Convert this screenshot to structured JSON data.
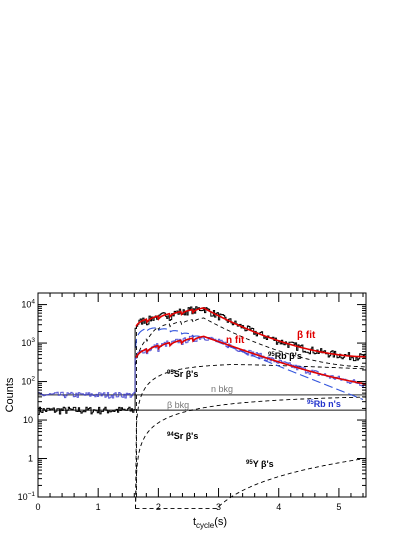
{
  "chart_data": {
    "type": "line",
    "xlabel": "t",
    "xlabel_sub": "cycle",
    "xlabel_unit": "(s)",
    "ylabel": "Counts",
    "xlim": [
      0,
      5.45
    ],
    "ylim": [
      0.1,
      20000
    ],
    "y_scale": "log",
    "x_ticks": [
      0,
      1,
      2,
      3,
      4,
      5
    ],
    "x_tick_labels": [
      "0",
      "1",
      "2",
      "3",
      "4",
      "5"
    ],
    "y_ticks": [
      0.1,
      1,
      10,
      100,
      1000,
      10000
    ],
    "y_tick_labels": [
      {
        "base": "10",
        "exp": "−1"
      },
      {
        "base": "1",
        "exp": ""
      },
      {
        "base": "10",
        "exp": ""
      },
      {
        "base": "10",
        "exp": "2"
      },
      {
        "base": "10",
        "exp": "3"
      },
      {
        "base": "10",
        "exp": "4"
      }
    ],
    "grid": false,
    "annotations": {
      "beta_fit": "β fit",
      "n_fit": "n fit",
      "rb95_beta": {
        "pre": "95",
        "main": "Rb β's"
      },
      "sr95_beta": {
        "pre": "95",
        "main": "Sr β's"
      },
      "n_bkg": "n bkg",
      "beta_bkg": "β bkg",
      "rb95_n": {
        "pre": "95",
        "main": "Rb n's"
      },
      "sr94_beta": {
        "pre": "94",
        "main": "Sr β's"
      },
      "y95_beta": {
        "pre": "95",
        "main": "Y  β's"
      }
    },
    "params": {
      "t_on": 1.62,
      "t_saw_end": 2.75,
      "saw_period": 0.19,
      "bkg_n": 45,
      "bkg_beta": 18,
      "beta_peak": 8200,
      "beta_end": 440,
      "n_peak": 1500,
      "n_end": 60,
      "n_half_life_s": 0.375
    },
    "series": [
      {
        "key": "beta_data",
        "color": "#000000"
      },
      {
        "key": "beta_fit",
        "color": "#e00000"
      },
      {
        "key": "n_data",
        "color": "#3333cc"
      },
      {
        "key": "n_fit",
        "color": "#e00000"
      },
      {
        "key": "rb95_n",
        "color": "#3355dd"
      },
      {
        "key": "rb95_beta",
        "color": "#000000"
      },
      {
        "key": "sr95_beta",
        "color": "#000000"
      },
      {
        "key": "sr94_beta",
        "color": "#000000"
      },
      {
        "key": "y95_beta",
        "color": "#000000"
      },
      {
        "key": "n_bkg",
        "color": "#555555"
      },
      {
        "key": "beta_bkg",
        "color": "#555555"
      }
    ],
    "colors": {
      "label_red": "#e00000",
      "label_blue": "#2233cc",
      "label_gray": "#777777"
    }
  }
}
